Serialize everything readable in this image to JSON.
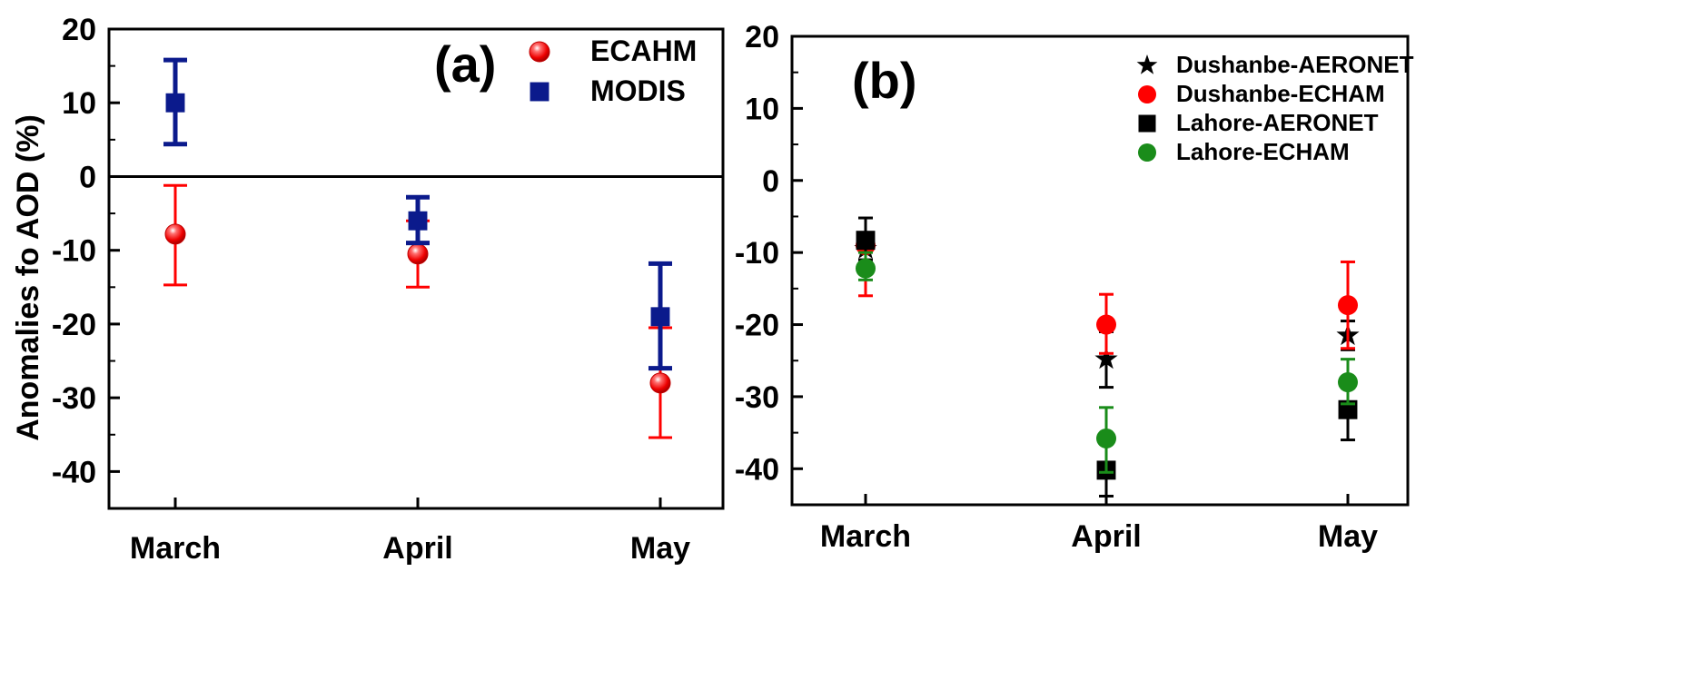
{
  "figure": {
    "panels": [
      "(a)",
      "(b)"
    ]
  },
  "chart_data": [
    {
      "type": "scatter",
      "panel_label": "(a)",
      "title": "",
      "xlabel": "",
      "ylabel": "Anomalies fo AOD (%)",
      "categories": [
        "March",
        "April",
        "May"
      ],
      "ylim": [
        -45,
        20
      ],
      "yticks": [
        20,
        10,
        0,
        -10,
        -20,
        -30,
        -40
      ],
      "zero_line": true,
      "grid": false,
      "legend_position": "top-right",
      "series": [
        {
          "name": "ECAHM",
          "marker": "sphere",
          "color": "#ff0000",
          "values": [
            -7.8,
            -10.5,
            -28.0
          ],
          "err_low": [
            -14.7,
            -15.0,
            -35.4
          ],
          "err_high": [
            -1.2,
            -6.0,
            -20.5
          ]
        },
        {
          "name": "MODIS",
          "marker": "square",
          "color": "#0b1a8c",
          "values": [
            10.0,
            -6.0,
            -19.0
          ],
          "err_low": [
            4.4,
            -9.0,
            -26.0
          ],
          "err_high": [
            15.8,
            -2.8,
            -11.8
          ]
        }
      ]
    },
    {
      "type": "scatter",
      "panel_label": "(b)",
      "title": "",
      "xlabel": "",
      "ylabel": "",
      "categories": [
        "March",
        "April",
        "May"
      ],
      "ylim": [
        -45,
        20
      ],
      "yticks": [
        20,
        10,
        0,
        -10,
        -20,
        -30,
        -40
      ],
      "grid": false,
      "legend_position": "top-right",
      "series": [
        {
          "name": "Dushanbe-AERONET",
          "marker": "star",
          "color": "#000000",
          "values": [
            -9.5,
            -24.8,
            -21.5
          ],
          "err_low": [
            -11.0,
            -28.7,
            -23.5
          ],
          "err_high": [
            -8.0,
            -21.0,
            -19.5
          ]
        },
        {
          "name": "Dushanbe-ECHAM",
          "marker": "circle",
          "color": "#ff0000",
          "values": [
            -9.0,
            -20.0,
            -17.3
          ],
          "err_low": [
            -16.0,
            -24.0,
            -23.3
          ],
          "err_high": [
            -8.5,
            -15.8,
            -11.3
          ]
        },
        {
          "name": "Lahore-AERONET",
          "marker": "square",
          "color": "#000000",
          "values": [
            -8.3,
            -40.2,
            -31.8
          ],
          "err_low": [
            -11.5,
            -43.8,
            -36.0
          ],
          "err_high": [
            -5.2,
            -36.5,
            -28.5
          ]
        },
        {
          "name": "Lahore-ECHAM",
          "marker": "circle",
          "color": "#1a8c1a",
          "values": [
            -12.2,
            -35.8,
            -28.0
          ],
          "err_low": [
            -13.8,
            -40.5,
            -31.0
          ],
          "err_high": [
            -10.0,
            -31.5,
            -24.8
          ]
        }
      ]
    }
  ]
}
